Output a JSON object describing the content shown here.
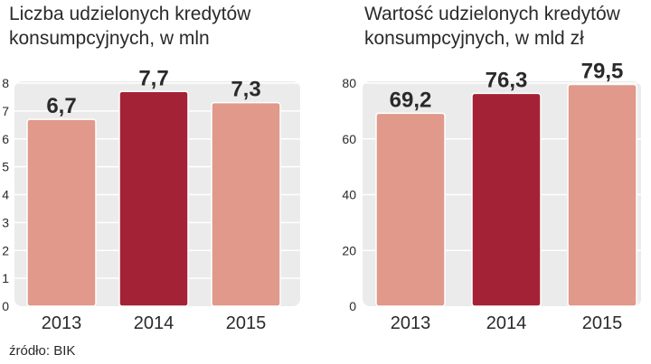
{
  "colors": {
    "bar_default": "#E0998A",
    "bar_highlight": "#A32236",
    "bar_stroke": "#ffffff",
    "panel_background": "#EBEBEB",
    "gridline": "#ffffff",
    "text": "#2a2a2a"
  },
  "charts": {
    "left": {
      "title_line1": "Liczba udzielonych kredytów",
      "title_line2": "konsumpcyjnych, w mln"
    },
    "right": {
      "title_line1": "Wartość udzielonych kredytów",
      "title_line2": "konsumpcyjnych, w mld zł"
    }
  },
  "source": "źródło: BIK",
  "chart_data": [
    {
      "type": "bar",
      "title": "Liczba udzielonych kredytów konsumpcyjnych, w mln",
      "xlabel": "",
      "ylabel": "",
      "categories": [
        "2013",
        "2014",
        "2015"
      ],
      "values": [
        6.7,
        7.7,
        7.3
      ],
      "value_labels": [
        "6,7",
        "7,7",
        "7,3"
      ],
      "highlight_index": 1,
      "ylim": [
        0,
        8
      ],
      "yticks": [
        0,
        1,
        2,
        3,
        4,
        5,
        6,
        7,
        8
      ],
      "grid": true,
      "legend": "none"
    },
    {
      "type": "bar",
      "title": "Wartość udzielonych kredytów konsumpcyjnych, w mld zł",
      "xlabel": "",
      "ylabel": "",
      "categories": [
        "2013",
        "2014",
        "2015"
      ],
      "values": [
        69.2,
        76.3,
        79.5
      ],
      "value_labels": [
        "69,2",
        "76,3",
        "79,5"
      ],
      "highlight_index": 1,
      "ylim": [
        0,
        80
      ],
      "yticks": [
        0,
        20,
        40,
        60,
        80
      ],
      "grid": true,
      "legend": "none"
    }
  ]
}
